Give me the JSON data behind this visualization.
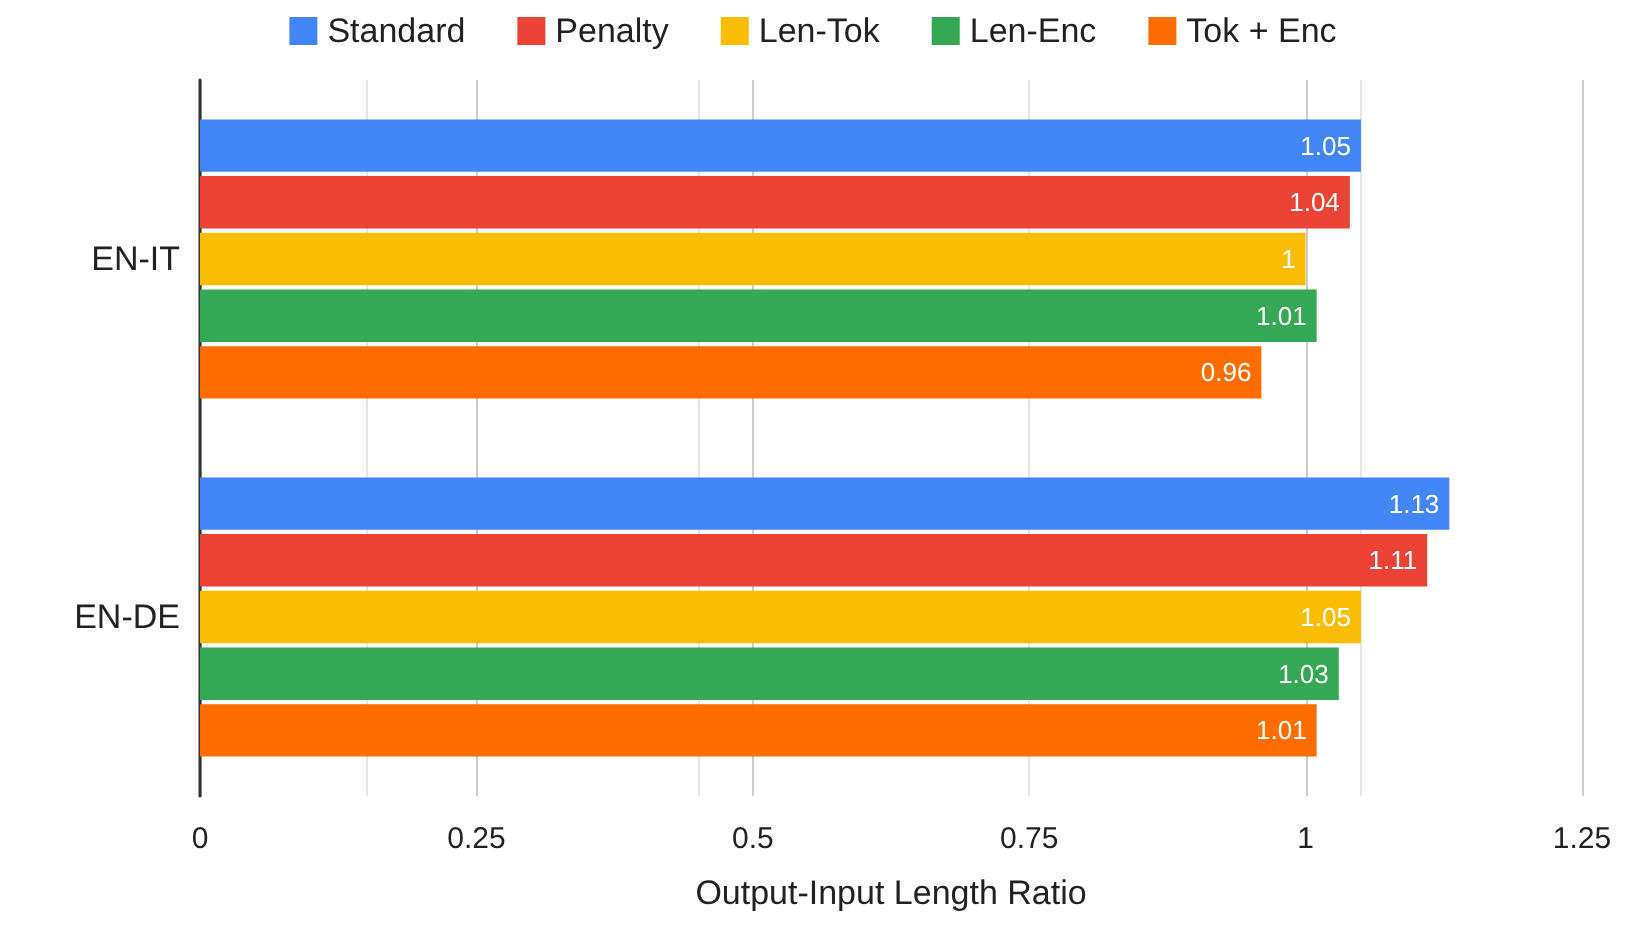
{
  "chart_data": {
    "type": "bar",
    "orientation": "horizontal",
    "xlabel": "Output-Input Length Ratio",
    "categories": [
      "EN-IT",
      "EN-DE"
    ],
    "series": [
      {
        "name": "Standard",
        "color": "#4285f4",
        "values": [
          1.05,
          1.13
        ]
      },
      {
        "name": "Penalty",
        "color": "#ea4335",
        "values": [
          1.04,
          1.11
        ]
      },
      {
        "name": "Len-Tok",
        "color": "#fbbc04",
        "values": [
          1,
          1.05
        ]
      },
      {
        "name": "Len-Enc",
        "color": "#34a853",
        "values": [
          1.01,
          1.03
        ]
      },
      {
        "name": "Tok + Enc",
        "color": "#ff6d01",
        "values": [
          0.96,
          1.01
        ]
      }
    ],
    "xlim": [
      0,
      1.25
    ],
    "xticks": [
      0,
      0.25,
      0.5,
      0.75,
      1,
      1.25
    ],
    "grid": "x",
    "legend": "top",
    "data_labels": true
  }
}
